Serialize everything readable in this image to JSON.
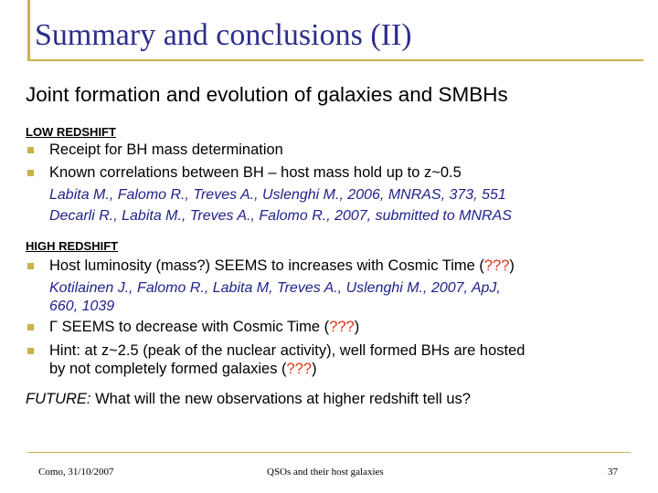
{
  "slide": {
    "title": "Summary and conclusions (II)",
    "subtitle": "Joint formation and evolution of galaxies and SMBHs",
    "low": {
      "heading": "LOW REDSHIFT",
      "b1": "Receipt for BH mass determination",
      "b2": "Known correlations between BH – host mass hold up to z~0.5",
      "ref1": "Labita M., Falomo R., Treves A., Uslenghi M., 2006, MNRAS, 373, 551",
      "ref2": "Decarli R., Labita M., Treves A., Falomo R., 2007, submitted to MNRAS"
    },
    "high": {
      "heading": "HIGH REDSHIFT",
      "b1_pre": "Host luminosity (mass?) SEEMS to increases with Cosmic Time (",
      "b1_q": "???",
      "b1_post": ")",
      "ref1_l1": "Kotilainen J., Falomo R., Labita M, Treves A., Uslenghi M., 2007, ApJ,",
      "ref1_l2": "660, 1039",
      "b2_pre": "Γ SEEMS to decrease with Cosmic Time (",
      "b2_q": "???",
      "b2_post": ")",
      "b3_l1": "Hint: at z~2.5 (peak of the nuclear activity), well formed BHs are hosted",
      "b3_l2_pre": "by not completely formed galaxies (",
      "b3_q": "???",
      "b3_l2_post": ")"
    },
    "future": {
      "label": "FUTURE:",
      "text": " What will the new observations at higher redshift tell us?"
    }
  },
  "footer": {
    "left": "Como, 31/10/2007",
    "center": "QSOs and their host galaxies",
    "right": "37"
  }
}
